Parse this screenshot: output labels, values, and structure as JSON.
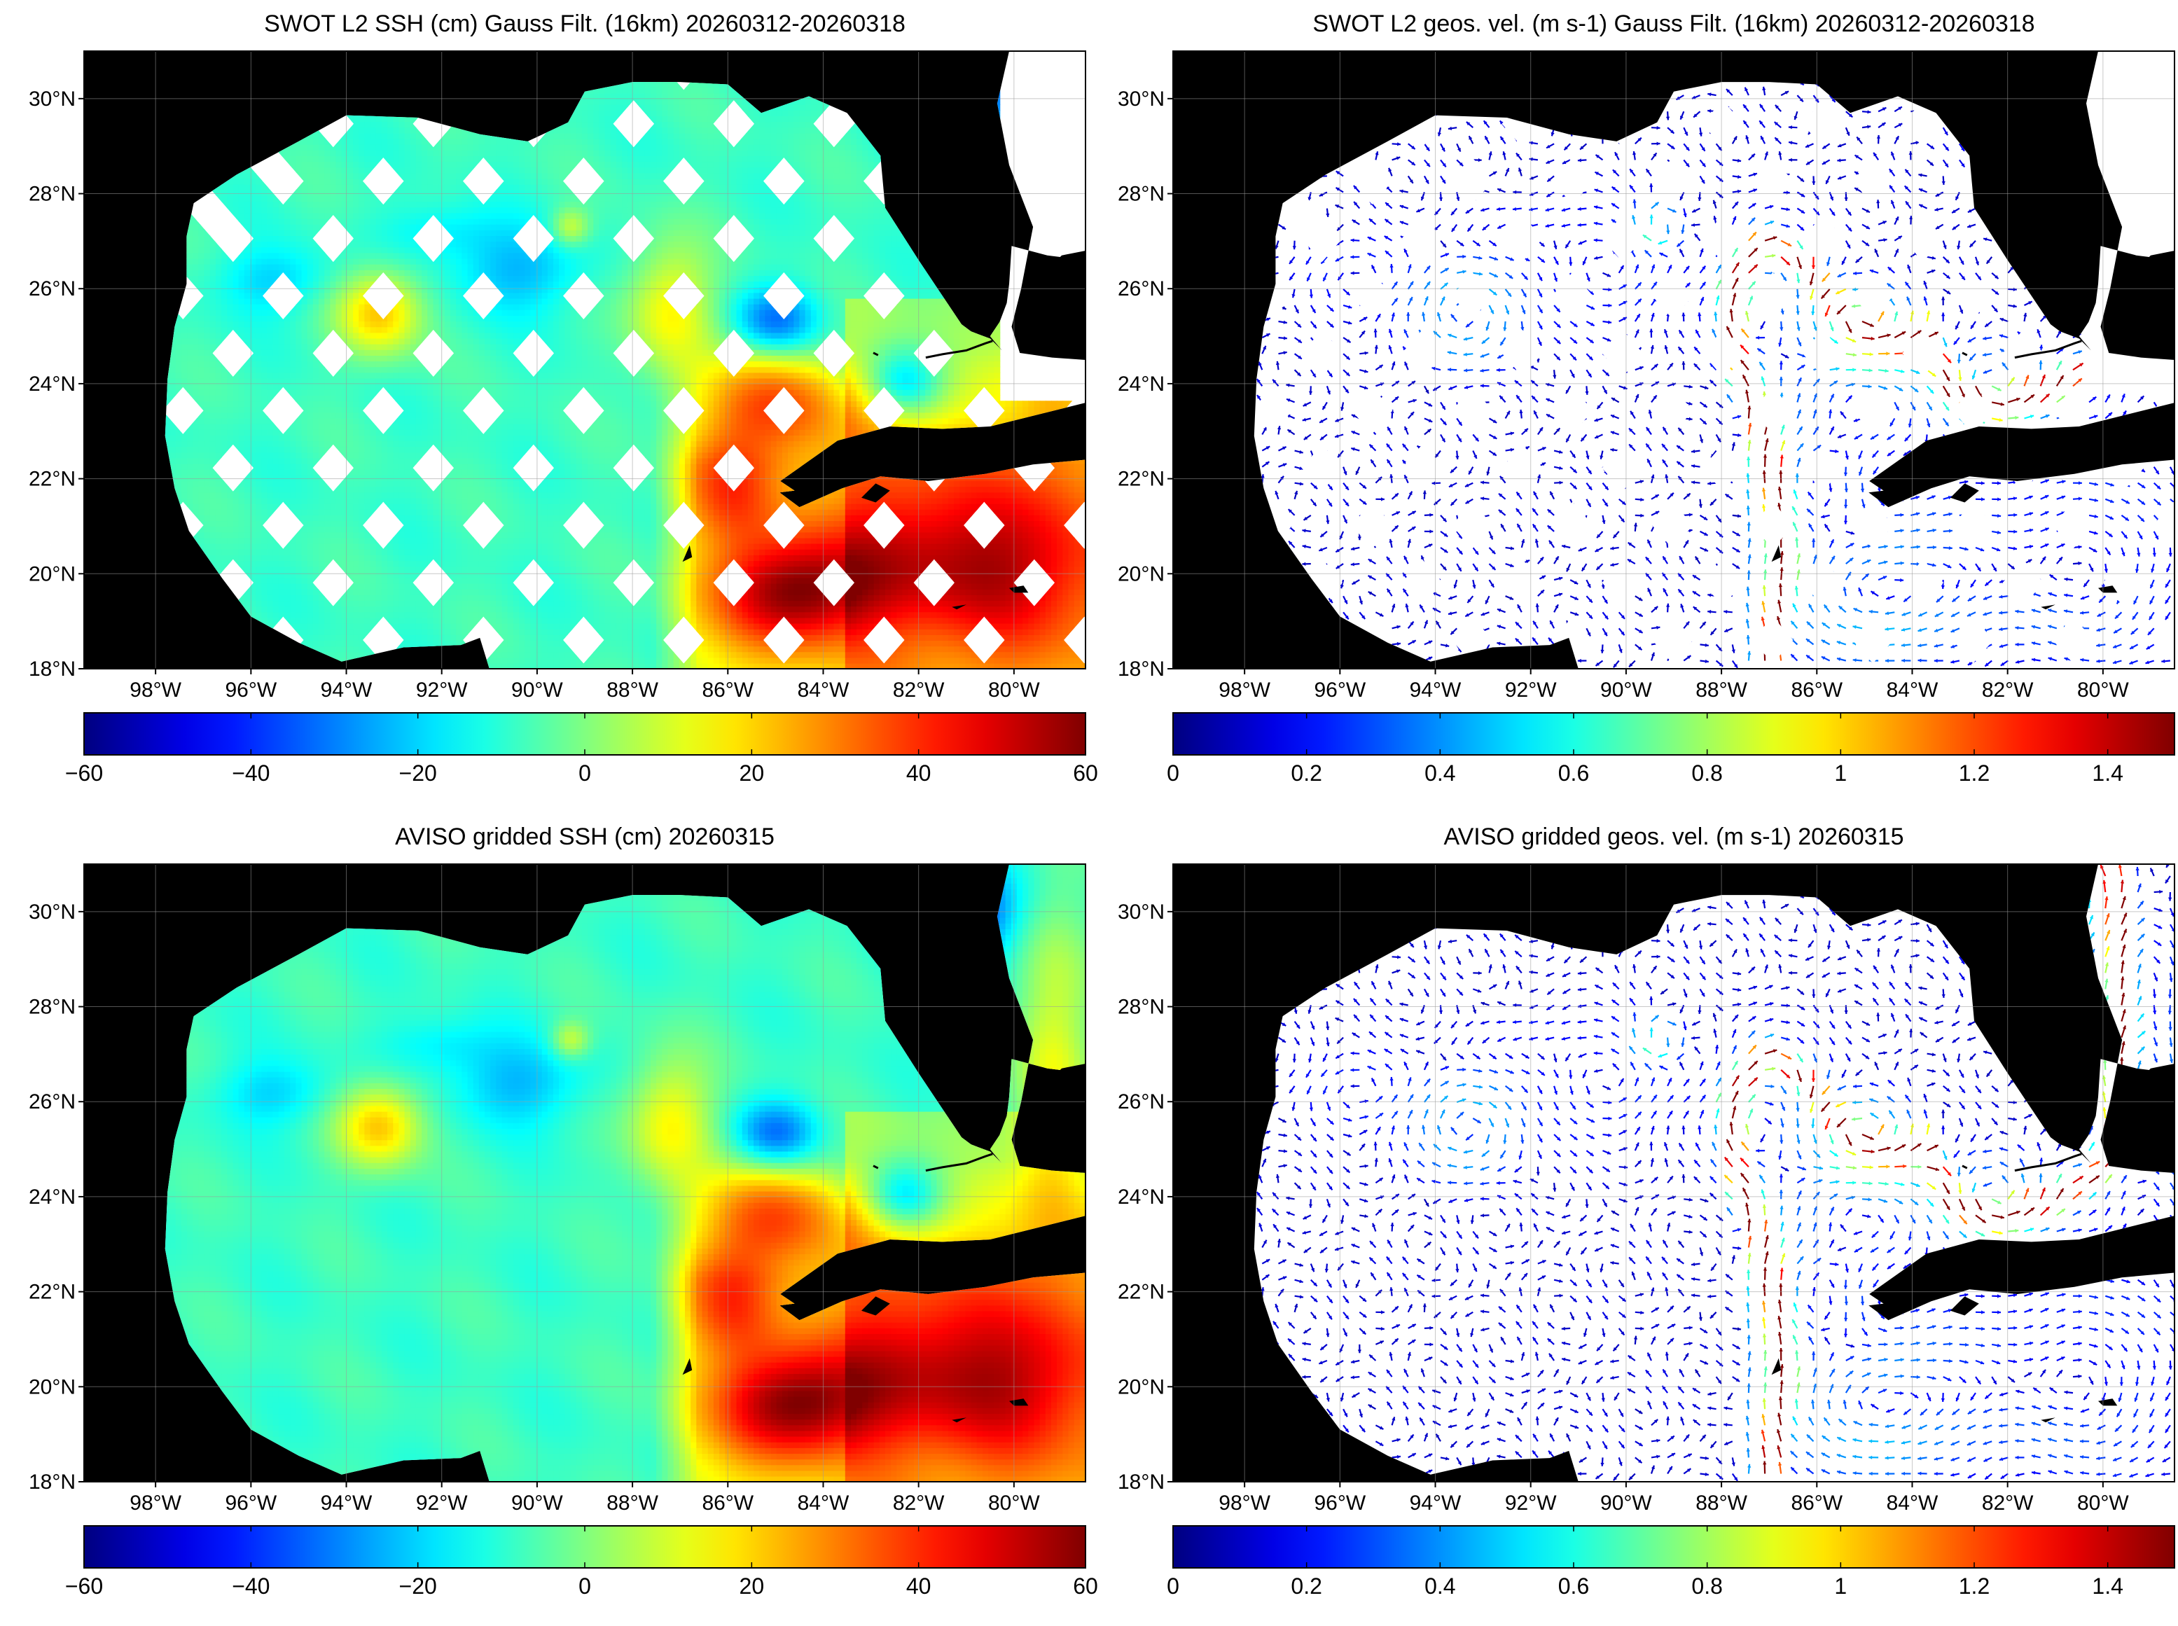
{
  "panels": [
    {
      "id": "swot-ssh",
      "title": "SWOT L2 SSH (cm) Gauss Filt. (16km) 20260312-20260318",
      "kind": "ssh",
      "style": "swaths",
      "colorbar": {
        "ticks": [
          "−60",
          "−40",
          "−20",
          "0",
          "20",
          "40",
          "60"
        ],
        "min": -60,
        "max": 60
      }
    },
    {
      "id": "swot-vel",
      "title": "SWOT L2 geos. vel. (m s-1) Gauss Filt. (16km) 20260312-20260318",
      "kind": "vel",
      "style": "swaths",
      "colorbar": {
        "ticks": [
          "0",
          "0.2",
          "0.4",
          "0.6",
          "0.8",
          "1",
          "1.2",
          "1.4"
        ],
        "min": 0,
        "max": 1.5
      }
    },
    {
      "id": "aviso-ssh",
      "title": "AVISO gridded SSH (cm) 20260315",
      "kind": "ssh",
      "style": "full",
      "colorbar": {
        "ticks": [
          "−60",
          "−40",
          "−20",
          "0",
          "20",
          "40",
          "60"
        ],
        "min": -60,
        "max": 60
      }
    },
    {
      "id": "aviso-vel",
      "title": "AVISO gridded geos. vel. (m s-1)  20260315",
      "kind": "vel",
      "style": "full",
      "colorbar": {
        "ticks": [
          "0",
          "0.2",
          "0.4",
          "0.6",
          "0.8",
          "1",
          "1.2",
          "1.4"
        ],
        "min": 0,
        "max": 1.5
      }
    }
  ],
  "map": {
    "lon_range": [
      -99.5,
      -78.5
    ],
    "lat_range": [
      18,
      31
    ],
    "lon_labels": [
      "98°W",
      "96°W",
      "94°W",
      "92°W",
      "90°W",
      "88°W",
      "86°W",
      "84°W",
      "82°W",
      "80°W"
    ],
    "lon_values": [
      -98,
      -96,
      -94,
      -92,
      -90,
      -88,
      -86,
      -84,
      -82,
      -80
    ],
    "lat_labels": [
      "18°N",
      "20°N",
      "22°N",
      "24°N",
      "26°N",
      "28°N",
      "30°N"
    ],
    "lat_values": [
      18,
      20,
      22,
      24,
      26,
      28,
      30
    ],
    "land_color": "#000000",
    "nodata_color": "#ffffff",
    "colormap": "jet"
  }
}
